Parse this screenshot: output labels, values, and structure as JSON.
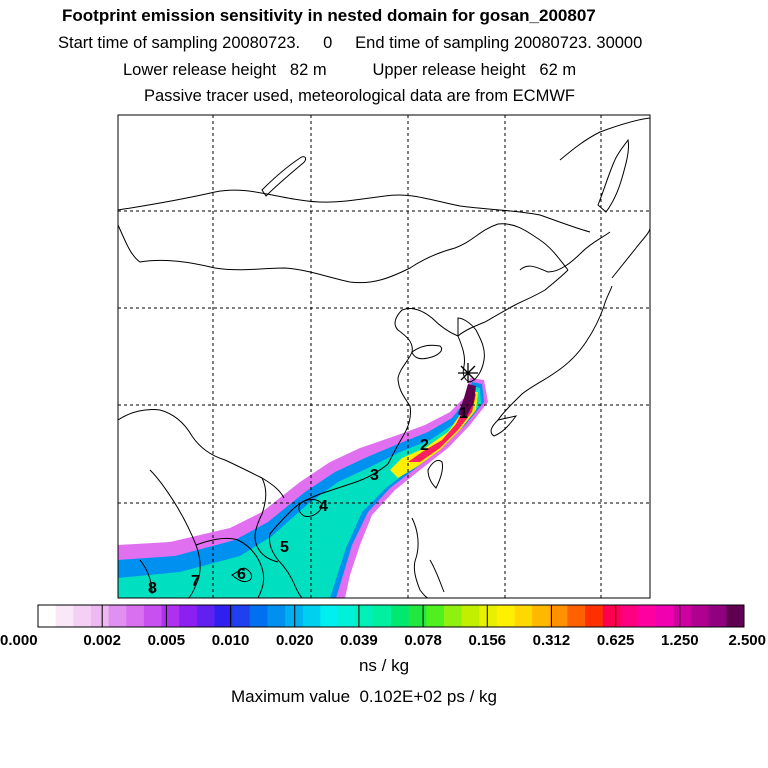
{
  "header": {
    "title": "Footprint emission sensitivity in nested domain for gosan_200807",
    "line2": "Start time of sampling 20080723.     0     End time of sampling 20080723. 30000",
    "line3": "Lower release height   82 m          Upper release height   62 m",
    "line4": "Passive tracer used, meteorological data are from ECMWF"
  },
  "map": {
    "site_marker": "star-icon",
    "trajectory_labels": [
      "1",
      "2",
      "3",
      "4",
      "5",
      "6",
      "7",
      "8"
    ],
    "colors": {
      "coastline": "#000000",
      "grid": "#000000",
      "plume_outer": "#e070f0",
      "plume_mid": "#00e0c0",
      "plume_core": "#ff2060"
    }
  },
  "colorbar": {
    "tick_labels": [
      "0.000",
      "0.002",
      "0.005",
      "0.010",
      "0.020",
      "0.039",
      "0.078",
      "0.156",
      "0.312",
      "0.625",
      "1.250",
      "2.500"
    ],
    "colors": [
      "#ffffff",
      "#f8e8f8",
      "#f4d0f4",
      "#eeb8f0",
      "#e090f0",
      "#d870f0",
      "#c850f0",
      "#b030f0",
      "#8c20f0",
      "#6020f0",
      "#3020f0",
      "#2040f0",
      "#0070f0",
      "#0090f0",
      "#00b0f0",
      "#00d0f0",
      "#00f0f0",
      "#00f0d8",
      "#00f0b8",
      "#00f0a0",
      "#00e870",
      "#20e840",
      "#50f020",
      "#90f010",
      "#c0f000",
      "#e8f000",
      "#fff000",
      "#ffd800",
      "#ffb800",
      "#ff9000",
      "#ff6000",
      "#ff3000",
      "#ff0050",
      "#ff0080",
      "#ff00a0",
      "#f000b0",
      "#d000a0",
      "#b00090",
      "#900080",
      "#600050"
    ],
    "units": "ns / kg"
  },
  "footer": {
    "max_value": "Maximum value  0.102E+02 ps / kg"
  }
}
